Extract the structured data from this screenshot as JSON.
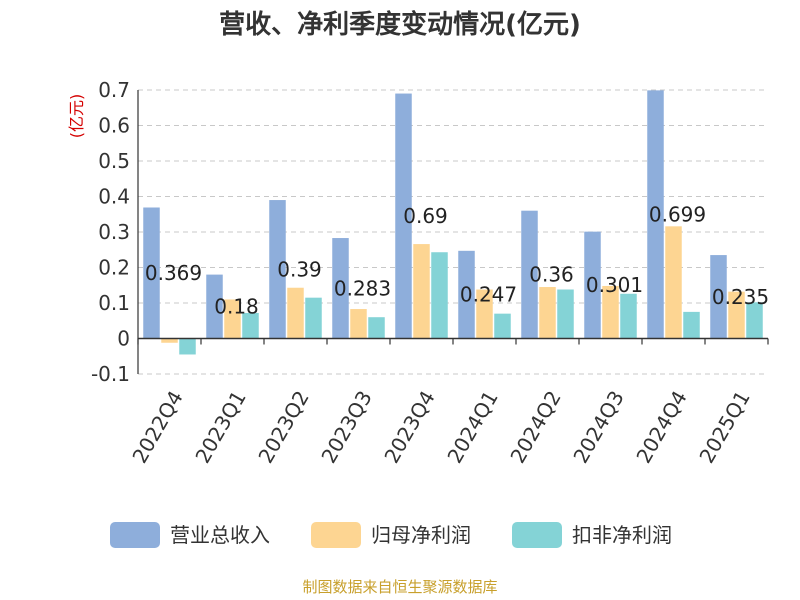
{
  "chart_data": {
    "type": "bar",
    "title": "营收、净利季度变动情况(亿元)",
    "ylabel": "(亿元)",
    "xlabel": "",
    "ylim": [
      -0.1,
      0.7
    ],
    "yticks": [
      -0.1,
      0,
      0.1,
      0.2,
      0.3,
      0.4,
      0.5,
      0.6,
      0.7
    ],
    "ytick_labels": [
      "-0.1",
      "0",
      "0.1",
      "0.2",
      "0.3",
      "0.4",
      "0.5",
      "0.6",
      "0.7"
    ],
    "grid": true,
    "legend_position": "bottom",
    "categories": [
      "2022Q4",
      "2023Q1",
      "2023Q2",
      "2023Q3",
      "2023Q4",
      "2024Q1",
      "2024Q2",
      "2024Q3",
      "2024Q4",
      "2025Q1"
    ],
    "series": [
      {
        "name": "营业总收入",
        "color": "#8eaedb",
        "values": [
          0.369,
          0.18,
          0.39,
          0.283,
          0.69,
          0.247,
          0.36,
          0.301,
          0.699,
          0.235
        ],
        "labels": [
          "0.369",
          "0.18",
          "0.39",
          "0.283",
          "0.69",
          "0.247",
          "0.36",
          "0.301",
          "0.699",
          "0.235"
        ]
      },
      {
        "name": "归母净利润",
        "color": "#fdd592",
        "values": [
          -0.012,
          0.11,
          0.143,
          0.083,
          0.266,
          0.138,
          0.145,
          0.148,
          0.316,
          0.132
        ]
      },
      {
        "name": "扣非净利润",
        "color": "#84d3d6",
        "values": [
          -0.045,
          0.072,
          0.115,
          0.06,
          0.243,
          0.07,
          0.138,
          0.126,
          0.075,
          0.102
        ]
      }
    ]
  },
  "source": "制图数据来自恒生聚源数据库"
}
